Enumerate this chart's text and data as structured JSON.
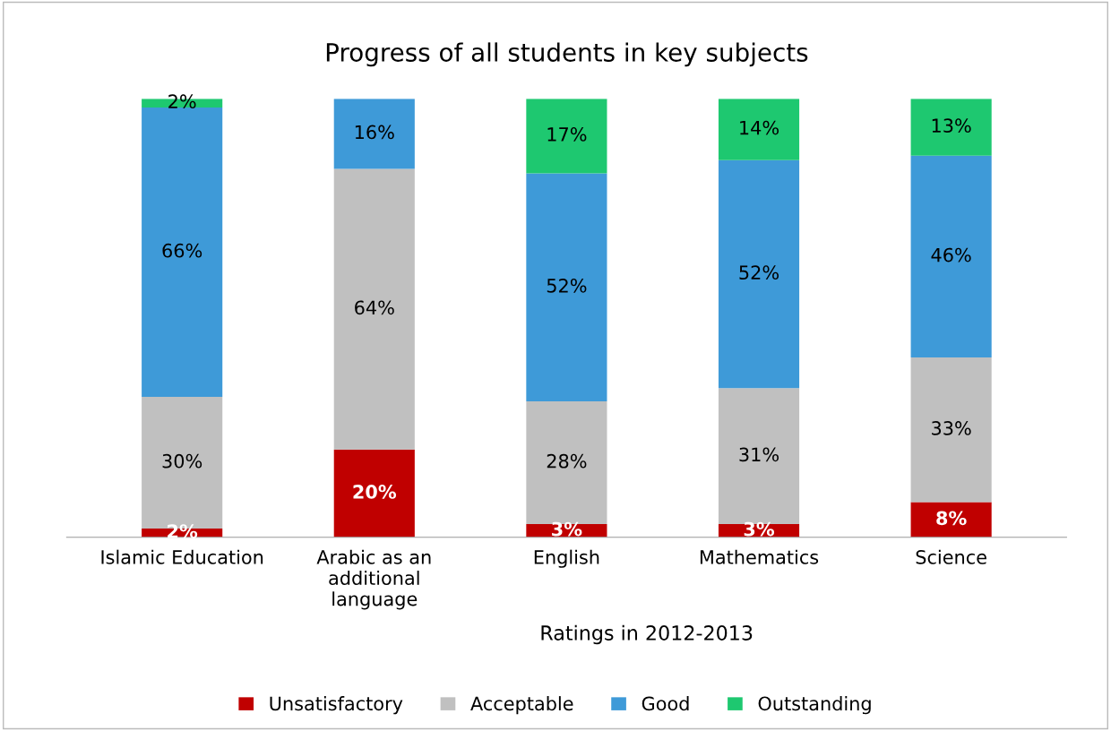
{
  "chart_data": {
    "type": "bar",
    "title": "Progress of all students in key subjects",
    "xlabel": "Ratings in 2012-2013",
    "categories": [
      "Islamic Education",
      "Arabic as an\nadditional\nlanguage",
      "English",
      "Mathematics",
      "Science"
    ],
    "stacked": true,
    "legend": "bottom",
    "grid": false,
    "series": [
      {
        "name": "Unsatisfactory",
        "color": "#c00000",
        "values": [
          2,
          20,
          3,
          3,
          8
        ],
        "value_labels": [
          "2%",
          "20%",
          "3%",
          "3%",
          "8%"
        ]
      },
      {
        "name": "Acceptable",
        "color": "#c0c0c0",
        "values": [
          30,
          64,
          28,
          31,
          33
        ],
        "value_labels": [
          "30%",
          "64%",
          "28%",
          "31%",
          "33%"
        ]
      },
      {
        "name": "Good",
        "color": "#3e9ad8",
        "values": [
          66,
          16,
          52,
          52,
          46
        ],
        "value_labels": [
          "66%",
          "16%",
          "52%",
          "52%",
          "46%"
        ]
      },
      {
        "name": "Outstanding",
        "color": "#1ec870",
        "values": [
          2,
          null,
          17,
          14,
          13
        ],
        "value_labels": [
          "2%",
          null,
          "17%",
          "14%",
          "13%"
        ]
      }
    ]
  }
}
